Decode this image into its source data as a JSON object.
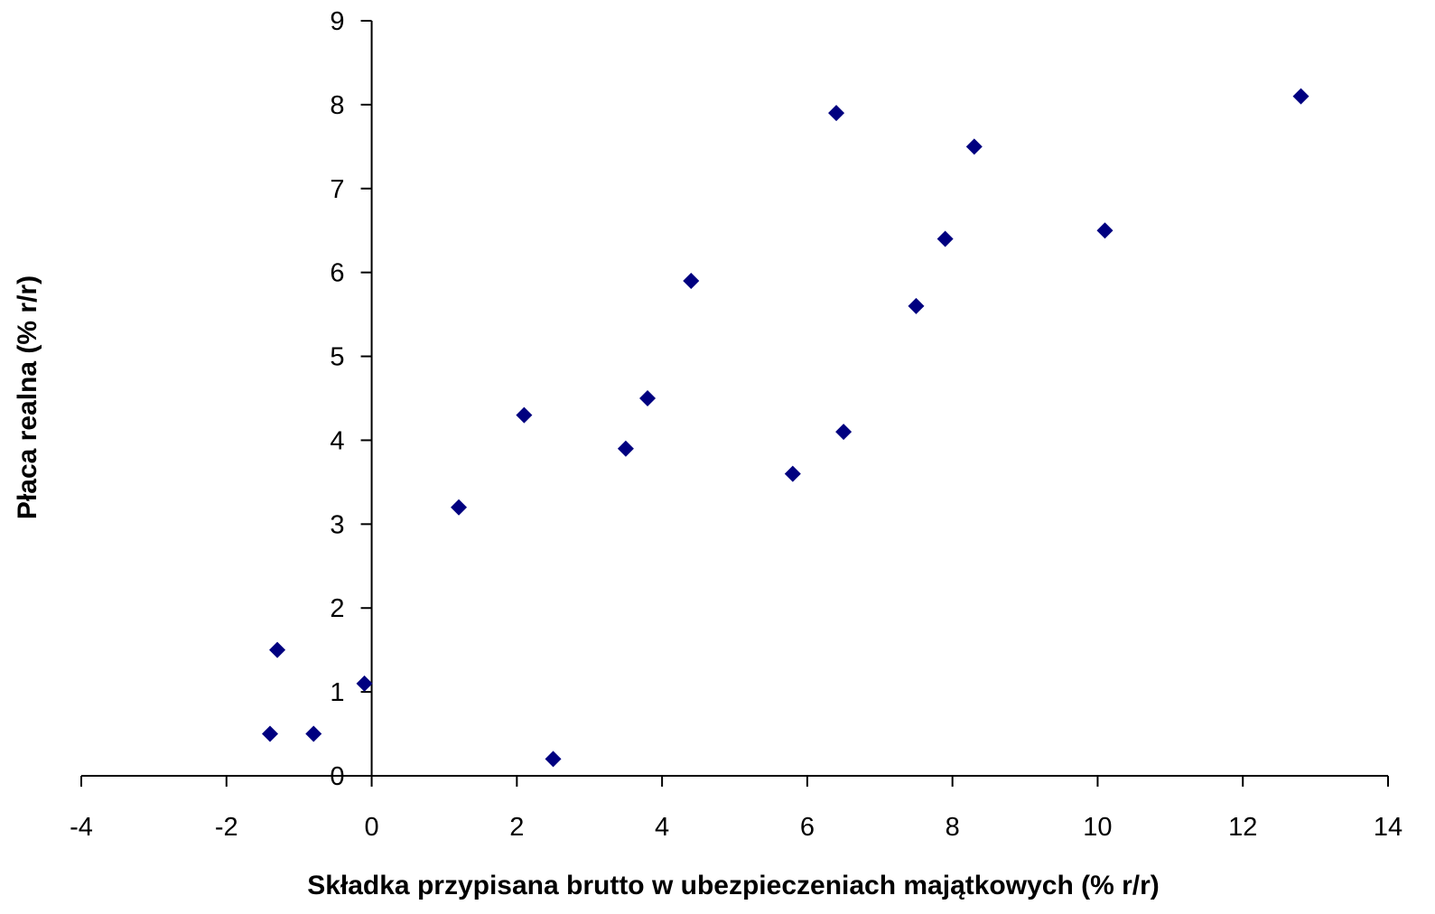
{
  "chart_data": {
    "type": "scatter",
    "xlabel": "Składka przypisana brutto w ubezpieczeniach majątkowych (% r/r)",
    "ylabel": "Płaca realna (% r/r)",
    "xlim": [
      -4,
      14
    ],
    "ylim": [
      0,
      9
    ],
    "x_ticks": [
      -4,
      -2,
      0,
      2,
      4,
      6,
      8,
      10,
      12,
      14
    ],
    "y_ticks": [
      0,
      1,
      2,
      3,
      4,
      5,
      6,
      7,
      8,
      9
    ],
    "grid": false,
    "marker": "diamond",
    "marker_color": "#000080",
    "points": [
      {
        "x": -1.4,
        "y": 0.5
      },
      {
        "x": -1.3,
        "y": 1.5
      },
      {
        "x": -0.8,
        "y": 0.5
      },
      {
        "x": -0.1,
        "y": 1.1
      },
      {
        "x": 1.2,
        "y": 3.2
      },
      {
        "x": 2.1,
        "y": 4.3
      },
      {
        "x": 2.5,
        "y": 0.2
      },
      {
        "x": 3.5,
        "y": 3.9
      },
      {
        "x": 3.8,
        "y": 4.5
      },
      {
        "x": 4.4,
        "y": 5.9
      },
      {
        "x": 5.8,
        "y": 3.6
      },
      {
        "x": 6.4,
        "y": 7.9
      },
      {
        "x": 6.5,
        "y": 4.1
      },
      {
        "x": 7.5,
        "y": 5.6
      },
      {
        "x": 7.9,
        "y": 6.4
      },
      {
        "x": 8.3,
        "y": 7.5
      },
      {
        "x": 10.1,
        "y": 6.5
      },
      {
        "x": 12.8,
        "y": 8.1
      }
    ]
  }
}
